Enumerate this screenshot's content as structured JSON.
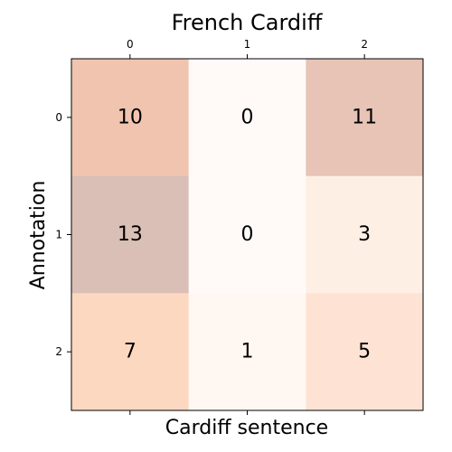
{
  "chart_data": {
    "type": "heatmap",
    "title": "French Cardiff",
    "xlabel": "Cardiff sentence",
    "ylabel": "Annotation",
    "x_ticks": [
      "0",
      "1",
      "2"
    ],
    "y_ticks": [
      "0",
      "1",
      "2"
    ],
    "values": [
      [
        10,
        0,
        11
      ],
      [
        13,
        0,
        3
      ],
      [
        7,
        1,
        5
      ]
    ],
    "cell_colors": [
      [
        "#f1c4b0",
        "#fffaf7",
        "#e7c4b6"
      ],
      [
        "#d9bfb6",
        "#fffaf7",
        "#feefe5"
      ],
      [
        "#fdd8c1",
        "#fff7f1",
        "#fee3d4"
      ]
    ],
    "x_tick_position": "top",
    "grid": false
  }
}
